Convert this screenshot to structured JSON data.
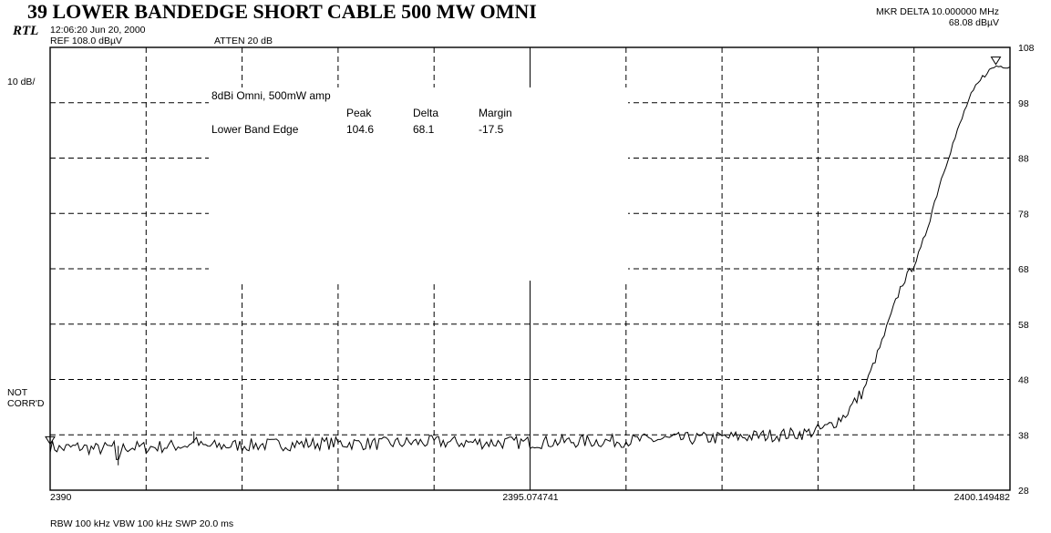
{
  "header": {
    "title": "39 LOWER BANDEDGE SHORT CABLE 500 MW OMNI",
    "logo": "RTL",
    "timestamp": "12:06:20 Jun 20, 2000",
    "ref_level": "REF 108.0 dBµV",
    "atten": "ATTEN 20 dB",
    "marker_line1": "MKR DELTA 10.000000 MHz",
    "marker_line2": "68.08 dBµV",
    "scale": "10 dB/",
    "not_corrd_1": "NOT",
    "not_corrd_2": "CORR'D"
  },
  "footer": {
    "x_left": "2390",
    "x_center": "2395.074741",
    "x_right": "2400.149482",
    "bandwidth": "RBW 100 kHz  VBW 100 kHz  SWP 20.0 ms"
  },
  "annotation": {
    "heading": "8dBi Omni, 500mW amp",
    "col_peak": "Peak",
    "col_delta": "Delta",
    "col_margin": "Margin",
    "row_label": "Lower Band Edge",
    "peak": "104.6",
    "delta": "68.1",
    "margin": "-17.5"
  },
  "chart_data": {
    "type": "line",
    "title": "39 LOWER BANDEDGE SHORT CABLE 500 MW OMNI",
    "xlabel": "",
    "ylabel": "",
    "xlim": [
      2390,
      2400.149482
    ],
    "ylim": [
      28,
      108
    ],
    "x_ticks": [
      "2390",
      "2395.074741",
      "2400.149482"
    ],
    "y_ticks": [
      108,
      98,
      88,
      78,
      68,
      58,
      48,
      38,
      28
    ],
    "grid": true,
    "legend": "none",
    "series": [
      {
        "x": [
          2390,
          2390.1,
          2390.3,
          2390.5,
          2390.7,
          2390.7,
          2390.75,
          2390.8,
          2391,
          2391.5,
          2391.5,
          2391.55,
          2391.6,
          2392,
          2392.5,
          2393,
          2393.5,
          2394,
          2394.5,
          2395,
          2395.5,
          2396,
          2396.5,
          2397,
          2397.5,
          2398,
          2398.2,
          2398.4,
          2398.6,
          2398.8,
          2399,
          2399.1,
          2399.2,
          2399.3,
          2399.4,
          2399.5,
          2399.6,
          2399.7,
          2399.8,
          2399.9,
          2400,
          2400.149482
        ],
        "values": [
          36,
          35.5,
          35.8,
          35.4,
          35.9,
          32.5,
          35.3,
          35.8,
          35.7,
          36.2,
          38.6,
          36.4,
          35.9,
          36.1,
          36.3,
          36.5,
          36.4,
          36.7,
          36.6,
          36.6,
          36.8,
          36.9,
          37.2,
          37.4,
          37.8,
          38.3,
          39.2,
          41.5,
          46,
          55,
          65,
          67.8,
          71,
          77,
          83,
          88.5,
          93,
          98,
          101,
          103.5,
          104.6,
          104.6
        ]
      }
    ],
    "markers": [
      {
        "x": 2390,
        "y": 36
      },
      {
        "x": 2400.0,
        "y": 104.6
      }
    ]
  }
}
